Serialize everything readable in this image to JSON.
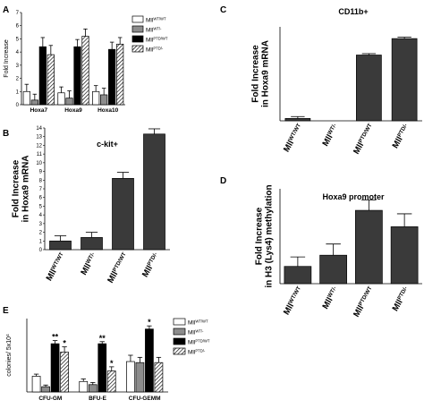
{
  "panels": {
    "a": "A",
    "b": "B",
    "c": "C",
    "d": "D",
    "e": "E"
  },
  "chart_data": [
    {
      "id": "A",
      "type": "bar",
      "title": "",
      "ylabel": "Fold Increase",
      "ylim": [
        0,
        7
      ],
      "yticks": [
        0,
        1,
        2,
        3,
        4,
        5,
        6,
        7
      ],
      "categories": [
        "Hoxa7",
        "Hoxa9",
        "Hoxa10"
      ],
      "series": [
        {
          "name": "WT/WT",
          "values": [
            1.0,
            0.9,
            1.0
          ],
          "errors": [
            0.55,
            0.45,
            0.45
          ]
        },
        {
          "name": "WT/-",
          "values": [
            0.35,
            0.5,
            0.75
          ],
          "errors": [
            0.45,
            0.55,
            0.5
          ]
        },
        {
          "name": "PTD/WT",
          "values": [
            4.4,
            4.4,
            4.2
          ],
          "errors": [
            0.7,
            0.55,
            0.55
          ]
        },
        {
          "name": "PTD/-",
          "values": [
            3.8,
            5.2,
            4.6
          ],
          "errors": [
            0.7,
            0.55,
            0.5
          ]
        }
      ],
      "legend_prefix": "Mll",
      "legend": "right"
    },
    {
      "id": "B",
      "type": "bar",
      "title": "c-kit+",
      "ylabel": "Fold Increase in Hoxa9 mRNA",
      "ylim": [
        0,
        14
      ],
      "yticks": [
        0,
        1,
        2,
        3,
        4,
        5,
        6,
        7,
        8,
        9,
        10,
        11,
        12,
        13,
        14
      ],
      "categories": [
        "WT/WT",
        "WT/-",
        "PTD/WT",
        "PTD/-"
      ],
      "category_prefix": "Mll",
      "values": [
        1.0,
        1.4,
        8.2,
        13.3
      ],
      "errors": [
        0.6,
        0.6,
        0.7,
        0.6
      ]
    },
    {
      "id": "C",
      "type": "bar",
      "title": "CD11b+",
      "ylabel": "Fold Increase in Hoxa9 mRNA",
      "ylim": [
        0,
        40
      ],
      "categories": [
        "WT/WT",
        "WT/-",
        "PTD/WT",
        "PTD/-"
      ],
      "category_prefix": "Mll",
      "values": [
        1.0,
        0,
        28.0,
        35.0
      ],
      "errors": [
        0.8,
        0,
        0.6,
        0.6
      ]
    },
    {
      "id": "D",
      "type": "bar",
      "title": "Hoxa9 promoter",
      "ylabel": "Fold Increase in H3 (Lys4) methylation",
      "ylim": [
        0,
        5.5
      ],
      "categories": [
        "WT/WT",
        "WT/-",
        "PTD/WT",
        "PTD/-"
      ],
      "category_prefix": "Mll",
      "values": [
        1.0,
        1.65,
        4.25,
        3.3
      ],
      "errors": [
        0.55,
        0.65,
        0.6,
        0.75
      ]
    },
    {
      "id": "E",
      "type": "bar",
      "title": "",
      "ylabel": "colonies/ 5x10",
      "ylabel_sup": "4",
      "ylim": [
        0,
        35
      ],
      "categories": [
        "CFU-GM",
        "BFU-E",
        "CFU-GEMM"
      ],
      "series": [
        {
          "name": "WT/WT",
          "values": [
            7.5,
            5.0,
            14.5
          ],
          "errors": [
            1.0,
            1.2,
            3.0
          ]
        },
        {
          "name": "WT/-",
          "values": [
            2.5,
            3.5,
            14.0
          ],
          "errors": [
            0.8,
            1.0,
            2.5
          ]
        },
        {
          "name": "PTD/WT",
          "values": [
            23.0,
            23.0,
            30.0
          ],
          "errors": [
            1.5,
            1.0,
            1.5
          ]
        },
        {
          "name": "PTD/-",
          "values": [
            19.0,
            10.0,
            14.0
          ],
          "errors": [
            2.5,
            2.0,
            2.5
          ]
        }
      ],
      "stars": [
        {
          "category": 0,
          "series": 2,
          "text": "**"
        },
        {
          "category": 0,
          "series": 3,
          "text": "*"
        },
        {
          "category": 1,
          "series": 2,
          "text": "**"
        },
        {
          "category": 1,
          "series": 3,
          "text": "*"
        },
        {
          "category": 2,
          "series": 2,
          "text": "*"
        }
      ],
      "legend_prefix": "Mll",
      "legend": "right"
    }
  ]
}
